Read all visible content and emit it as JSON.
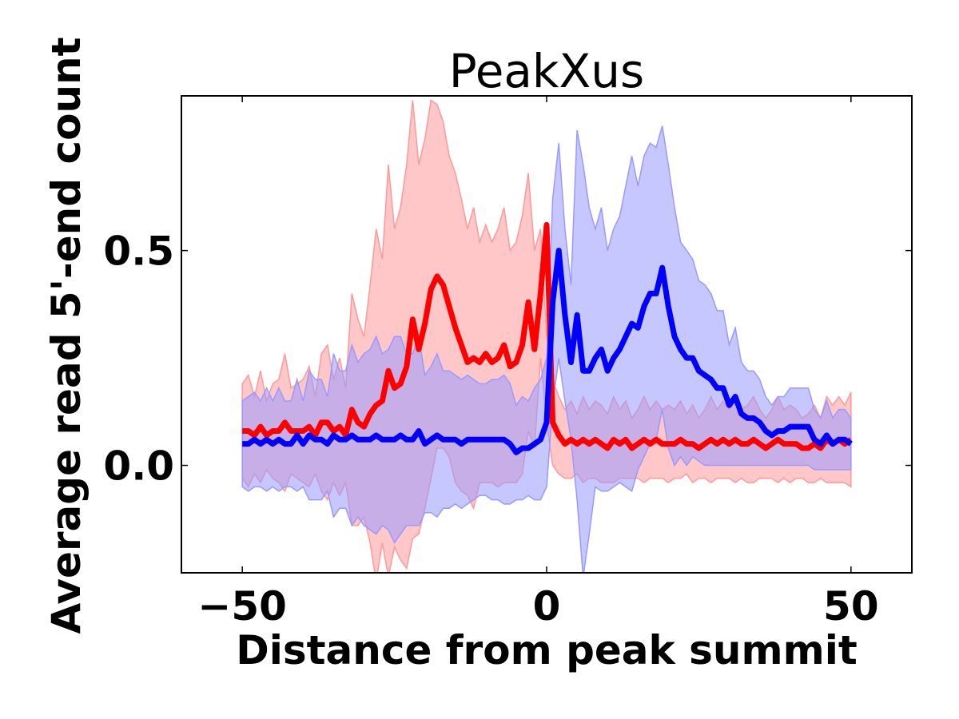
{
  "chart_data": {
    "type": "line",
    "title": "PeakXus",
    "xlabel": "Distance from peak summit",
    "ylabel": "Average read 5'-end count",
    "xlim": [
      -60,
      60
    ],
    "ylim": [
      -0.25,
      0.86
    ],
    "x_ticks": [
      -50,
      0,
      50
    ],
    "x_tick_labels": [
      "−50",
      "0",
      "50"
    ],
    "y_ticks": [
      0.0,
      0.5
    ],
    "y_tick_labels": [
      "0.0",
      "0.5"
    ],
    "grid": false,
    "legend": "none",
    "x": [
      -50,
      -49,
      -48,
      -47,
      -46,
      -45,
      -44,
      -43,
      -42,
      -41,
      -40,
      -39,
      -38,
      -37,
      -36,
      -35,
      -34,
      -33,
      -32,
      -31,
      -30,
      -29,
      -28,
      -27,
      -26,
      -25,
      -24,
      -23,
      -22,
      -21,
      -20,
      -19,
      -18,
      -17,
      -16,
      -15,
      -14,
      -13,
      -12,
      -11,
      -10,
      -9,
      -8,
      -7,
      -6,
      -5,
      -4,
      -3,
      -2,
      -1,
      0,
      1,
      2,
      3,
      4,
      5,
      6,
      7,
      8,
      9,
      10,
      11,
      12,
      13,
      14,
      15,
      16,
      17,
      18,
      19,
      20,
      21,
      22,
      23,
      24,
      25,
      26,
      27,
      28,
      29,
      30,
      31,
      32,
      33,
      34,
      35,
      36,
      37,
      38,
      39,
      40,
      41,
      42,
      43,
      44,
      45,
      46,
      47,
      48,
      49,
      50
    ],
    "series": [
      {
        "color": "#ff0000",
        "band_color": "#ff9999",
        "values": [
          0.08,
          0.08,
          0.07,
          0.09,
          0.07,
          0.08,
          0.08,
          0.1,
          0.08,
          0.08,
          0.08,
          0.09,
          0.07,
          0.1,
          0.1,
          0.08,
          0.09,
          0.07,
          0.13,
          0.1,
          0.09,
          0.12,
          0.14,
          0.15,
          0.22,
          0.18,
          0.19,
          0.23,
          0.34,
          0.27,
          0.33,
          0.41,
          0.44,
          0.42,
          0.37,
          0.32,
          0.28,
          0.24,
          0.25,
          0.24,
          0.26,
          0.24,
          0.25,
          0.28,
          0.23,
          0.24,
          0.28,
          0.38,
          0.27,
          0.4,
          0.56,
          0.1,
          0.07,
          0.05,
          0.06,
          0.05,
          0.06,
          0.05,
          0.06,
          0.05,
          0.04,
          0.06,
          0.05,
          0.06,
          0.04,
          0.05,
          0.06,
          0.05,
          0.06,
          0.05,
          0.05,
          0.05,
          0.06,
          0.05,
          0.05,
          0.04,
          0.05,
          0.06,
          0.05,
          0.06,
          0.05,
          0.06,
          0.05,
          0.05,
          0.06,
          0.05,
          0.04,
          0.05,
          0.06,
          0.05,
          0.05,
          0.05,
          0.04,
          0.04,
          0.05,
          0.04,
          0.06,
          0.05,
          0.06,
          0.05,
          0.06
        ],
        "upper": [
          0.19,
          0.21,
          0.16,
          0.22,
          0.15,
          0.19,
          0.2,
          0.26,
          0.18,
          0.19,
          0.2,
          0.23,
          0.16,
          0.26,
          0.28,
          0.2,
          0.25,
          0.18,
          0.4,
          0.34,
          0.3,
          0.42,
          0.55,
          0.48,
          0.7,
          0.55,
          0.6,
          0.7,
          0.85,
          0.7,
          0.76,
          0.85,
          0.84,
          0.8,
          0.72,
          0.68,
          0.62,
          0.55,
          0.6,
          0.52,
          0.56,
          0.52,
          0.55,
          0.6,
          0.5,
          0.52,
          0.58,
          0.68,
          0.5,
          0.55,
          0.3,
          0.2,
          0.16,
          0.13,
          0.15,
          0.12,
          0.16,
          0.13,
          0.15,
          0.14,
          0.12,
          0.16,
          0.13,
          0.15,
          0.11,
          0.13,
          0.16,
          0.13,
          0.15,
          0.13,
          0.14,
          0.13,
          0.15,
          0.12,
          0.14,
          0.11,
          0.13,
          0.16,
          0.13,
          0.15,
          0.13,
          0.16,
          0.13,
          0.14,
          0.16,
          0.13,
          0.11,
          0.13,
          0.16,
          0.13,
          0.14,
          0.13,
          0.11,
          0.12,
          0.14,
          0.11,
          0.16,
          0.14,
          0.16,
          0.14,
          0.17
        ],
        "lower": [
          -0.03,
          -0.05,
          -0.02,
          -0.04,
          -0.01,
          -0.03,
          -0.04,
          -0.06,
          -0.02,
          -0.03,
          -0.04,
          -0.05,
          -0.02,
          -0.06,
          -0.08,
          -0.04,
          -0.07,
          -0.04,
          -0.14,
          -0.14,
          -0.12,
          -0.18,
          -0.27,
          -0.18,
          -0.26,
          -0.19,
          -0.22,
          -0.24,
          -0.17,
          -0.16,
          -0.1,
          -0.03,
          0.04,
          0.04,
          0.02,
          -0.04,
          -0.06,
          -0.07,
          -0.1,
          -0.04,
          -0.04,
          -0.04,
          -0.05,
          -0.04,
          -0.04,
          -0.04,
          -0.02,
          0.08,
          0.04,
          0.25,
          0.1,
          0.0,
          -0.02,
          -0.03,
          -0.03,
          -0.02,
          -0.04,
          -0.03,
          -0.03,
          -0.04,
          -0.04,
          -0.04,
          -0.03,
          -0.03,
          -0.03,
          -0.03,
          -0.04,
          -0.03,
          -0.03,
          -0.03,
          -0.04,
          -0.03,
          -0.03,
          -0.02,
          -0.04,
          -0.03,
          -0.03,
          -0.04,
          -0.03,
          -0.03,
          -0.03,
          -0.04,
          -0.03,
          -0.04,
          -0.04,
          -0.03,
          -0.03,
          -0.03,
          -0.04,
          -0.03,
          -0.04,
          -0.03,
          -0.03,
          -0.04,
          -0.04,
          -0.03,
          -0.04,
          -0.04,
          -0.04,
          -0.04,
          -0.05
        ]
      },
      {
        "color": "#0000ff",
        "band_color": "#9999ff",
        "values": [
          0.05,
          0.05,
          0.06,
          0.05,
          0.06,
          0.05,
          0.06,
          0.05,
          0.05,
          0.07,
          0.05,
          0.07,
          0.06,
          0.06,
          0.05,
          0.07,
          0.06,
          0.06,
          0.07,
          0.06,
          0.06,
          0.06,
          0.07,
          0.06,
          0.06,
          0.06,
          0.07,
          0.06,
          0.06,
          0.08,
          0.05,
          0.06,
          0.07,
          0.06,
          0.06,
          0.06,
          0.05,
          0.06,
          0.06,
          0.06,
          0.06,
          0.06,
          0.06,
          0.06,
          0.05,
          0.03,
          0.04,
          0.04,
          0.05,
          0.06,
          0.1,
          0.38,
          0.5,
          0.35,
          0.24,
          0.35,
          0.22,
          0.22,
          0.25,
          0.27,
          0.22,
          0.25,
          0.27,
          0.3,
          0.33,
          0.32,
          0.37,
          0.4,
          0.4,
          0.46,
          0.37,
          0.3,
          0.27,
          0.25,
          0.25,
          0.22,
          0.21,
          0.2,
          0.18,
          0.18,
          0.14,
          0.16,
          0.12,
          0.11,
          0.11,
          0.1,
          0.08,
          0.07,
          0.08,
          0.08,
          0.09,
          0.09,
          0.09,
          0.09,
          0.06,
          0.05,
          0.07,
          0.05,
          0.06,
          0.06,
          0.05
        ],
        "upper": [
          0.15,
          0.16,
          0.17,
          0.15,
          0.18,
          0.15,
          0.18,
          0.15,
          0.15,
          0.2,
          0.15,
          0.22,
          0.2,
          0.2,
          0.16,
          0.26,
          0.22,
          0.22,
          0.28,
          0.24,
          0.26,
          0.27,
          0.3,
          0.26,
          0.27,
          0.3,
          0.3,
          0.26,
          0.26,
          0.3,
          0.21,
          0.23,
          0.26,
          0.22,
          0.22,
          0.21,
          0.2,
          0.21,
          0.2,
          0.19,
          0.19,
          0.2,
          0.2,
          0.21,
          0.19,
          0.14,
          0.16,
          0.15,
          0.18,
          0.2,
          0.25,
          0.62,
          0.75,
          0.55,
          0.42,
          0.78,
          0.7,
          0.6,
          0.55,
          0.6,
          0.5,
          0.55,
          0.58,
          0.65,
          0.72,
          0.65,
          0.72,
          0.75,
          0.74,
          0.79,
          0.7,
          0.6,
          0.52,
          0.5,
          0.48,
          0.43,
          0.42,
          0.4,
          0.36,
          0.36,
          0.28,
          0.32,
          0.24,
          0.22,
          0.22,
          0.2,
          0.16,
          0.14,
          0.16,
          0.16,
          0.18,
          0.18,
          0.18,
          0.18,
          0.13,
          0.11,
          0.15,
          0.11,
          0.13,
          0.13,
          0.11
        ],
        "lower": [
          -0.05,
          -0.06,
          -0.05,
          -0.05,
          -0.06,
          -0.05,
          -0.06,
          -0.05,
          -0.05,
          -0.06,
          -0.05,
          -0.08,
          -0.08,
          -0.08,
          -0.06,
          -0.12,
          -0.1,
          -0.1,
          -0.14,
          -0.12,
          -0.14,
          -0.15,
          -0.16,
          -0.14,
          -0.15,
          -0.18,
          -0.16,
          -0.14,
          -0.14,
          -0.14,
          -0.11,
          -0.11,
          -0.12,
          -0.1,
          -0.1,
          -0.09,
          -0.1,
          -0.09,
          -0.08,
          -0.07,
          -0.07,
          -0.08,
          -0.08,
          -0.09,
          -0.09,
          -0.08,
          -0.08,
          -0.07,
          -0.08,
          -0.08,
          -0.05,
          0.14,
          0.25,
          0.15,
          0.06,
          -0.08,
          -0.26,
          -0.16,
          -0.05,
          -0.06,
          -0.06,
          -0.05,
          -0.04,
          -0.05,
          -0.06,
          -0.01,
          0.02,
          0.05,
          0.06,
          0.13,
          0.04,
          0.0,
          0.02,
          0.0,
          0.02,
          0.01,
          0.0,
          0.0,
          0.0,
          0.0,
          0.0,
          0.0,
          0.0,
          0.0,
          0.0,
          0.0,
          0.0,
          0.0,
          0.0,
          0.0,
          0.0,
          0.0,
          0.0,
          0.0,
          -0.01,
          -0.01,
          -0.01,
          -0.01,
          -0.01,
          -0.01,
          -0.01
        ]
      }
    ]
  }
}
